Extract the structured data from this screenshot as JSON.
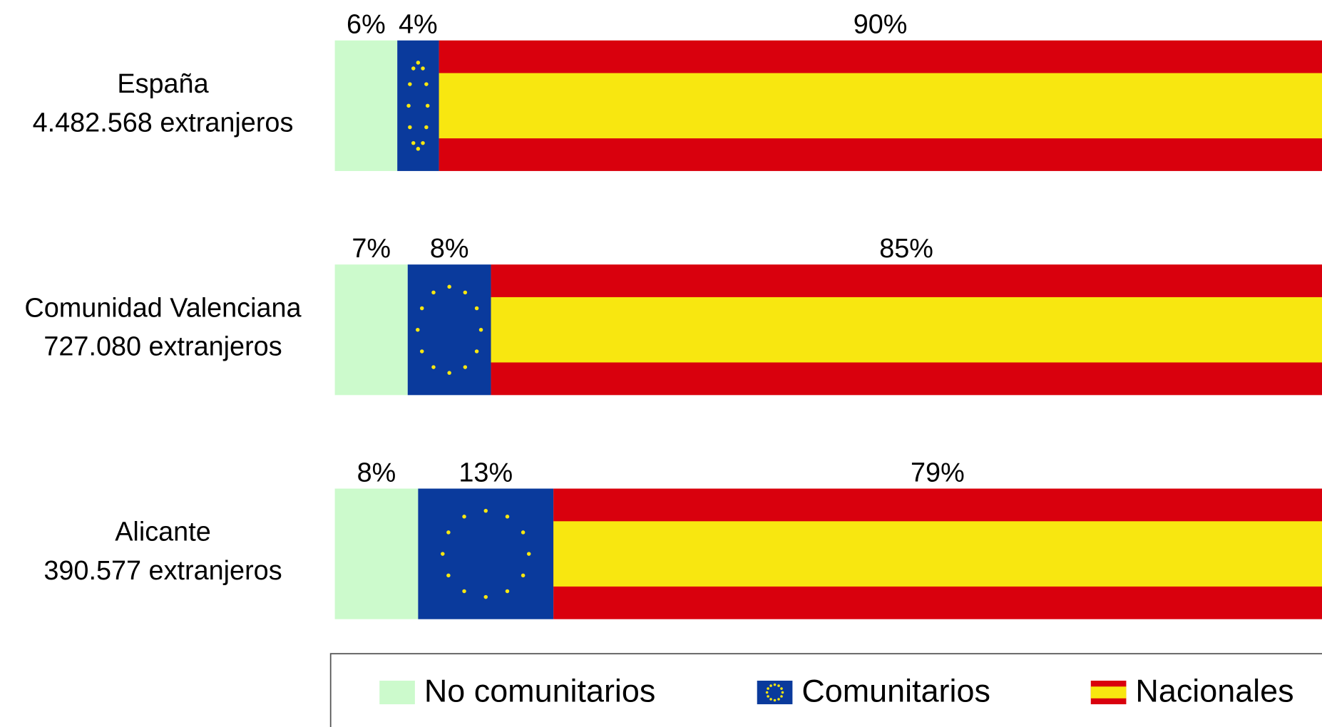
{
  "chart_data": {
    "type": "stacked-bar-horizontal",
    "categories": [
      "España",
      "Comunidad Valenciana",
      "Alicante"
    ],
    "category_sublabels": [
      "4.482.568 extranjeros",
      "727.080 extranjeros",
      "390.577 extranjeros"
    ],
    "series": [
      {
        "name": "No comunitarios",
        "color": "#ccfacc",
        "fill_style": "plain",
        "values": [
          6,
          7,
          8
        ],
        "value_labels": [
          "6%",
          "7%",
          "8%"
        ]
      },
      {
        "name": "Comunitarios",
        "color": "#0a3a9c",
        "fill_style": "eu-flag",
        "values": [
          4,
          8,
          13
        ],
        "value_labels": [
          "4%",
          "8%",
          "13%"
        ]
      },
      {
        "name": "Nacionales",
        "color": "#d9000d",
        "fill_style": "es-flag",
        "values": [
          90,
          85,
          79
        ],
        "value_labels": [
          "90%",
          "85%",
          "79%"
        ]
      }
    ],
    "legend": "bottom"
  }
}
